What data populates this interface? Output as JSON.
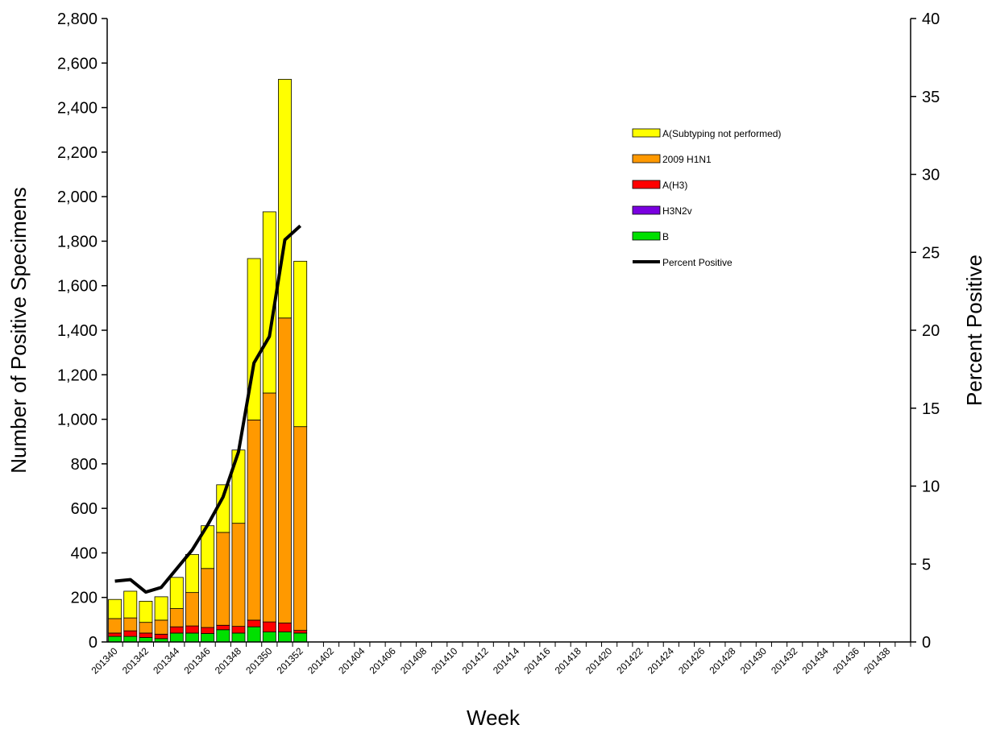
{
  "chart_data": {
    "type": "bar",
    "stacked": true,
    "x_label": "Week",
    "y_label": "Number of Positive Specimens",
    "y2_label": "Percent Positive",
    "categories": [
      "201340",
      null,
      "201342",
      null,
      "201344",
      null,
      "201346",
      null,
      "201348",
      null,
      "201350",
      null,
      "201352",
      null,
      "201402",
      null,
      "201404",
      null,
      "201406",
      null,
      "201408",
      null,
      "201410",
      null,
      "201412",
      null,
      "201414",
      null,
      "201416",
      null,
      "201418",
      null,
      "201420",
      null,
      "201422",
      null,
      "201424",
      null,
      "201426",
      null,
      "201428",
      null,
      "201430",
      null,
      "201432",
      null,
      "201434",
      null,
      "201436",
      null,
      "201438",
      null
    ],
    "ylim": [
      0,
      2800
    ],
    "yticks": [
      0,
      200,
      400,
      600,
      800,
      {
        "value": 1000,
        "label": "1,000"
      },
      {
        "value": 1200,
        "label": "1,200"
      },
      {
        "value": 1400,
        "label": "1,400"
      },
      {
        "value": 1600,
        "label": "1,600"
      },
      {
        "value": 1800,
        "label": "1,800"
      },
      {
        "value": 2000,
        "label": "2,000"
      },
      {
        "value": 2200,
        "label": "2,200"
      },
      {
        "value": 2400,
        "label": "2,400"
      },
      {
        "value": 2600,
        "label": "2,600"
      },
      {
        "value": 2800,
        "label": "2,800"
      }
    ],
    "y2lim": [
      0,
      40
    ],
    "y2ticks": [
      0,
      5,
      10,
      15,
      20,
      25,
      30,
      35,
      40
    ],
    "series": [
      {
        "name": "B",
        "color": "#00e000",
        "values": [
          25,
          25,
          20,
          15,
          40,
          40,
          38,
          55,
          40,
          68,
          45,
          45,
          40,
          null,
          null,
          null,
          null,
          null,
          null,
          null,
          null,
          null,
          null,
          null,
          null,
          null,
          null,
          null,
          null,
          null,
          null,
          null,
          null,
          null,
          null,
          null,
          null,
          null,
          null,
          null,
          null,
          null,
          null,
          null,
          null,
          null,
          null,
          null,
          null,
          null,
          null,
          null
        ]
      },
      {
        "name": "H3N2v",
        "color": "#7a00e0",
        "values": [
          0,
          0,
          0,
          0,
          0,
          0,
          0,
          0,
          0,
          0,
          0,
          0,
          0,
          null,
          null,
          null,
          null,
          null,
          null,
          null,
          null,
          null,
          null,
          null,
          null,
          null,
          null,
          null,
          null,
          null,
          null,
          null,
          null,
          null,
          null,
          null,
          null,
          null,
          null,
          null,
          null,
          null,
          null,
          null,
          null,
          null,
          null,
          null,
          null,
          null,
          null,
          null
        ]
      },
      {
        "name": "A(H3)",
        "color": "#ff0000",
        "values": [
          15,
          25,
          20,
          20,
          28,
          32,
          27,
          20,
          30,
          30,
          45,
          40,
          12,
          null,
          null,
          null,
          null,
          null,
          null,
          null,
          null,
          null,
          null,
          null,
          null,
          null,
          null,
          null,
          null,
          null,
          null,
          null,
          null,
          null,
          null,
          null,
          null,
          null,
          null,
          null,
          null,
          null,
          null,
          null,
          null,
          null,
          null,
          null,
          null,
          null,
          null,
          null
        ]
      },
      {
        "name": "2009 H1N1",
        "color": "#ff9900",
        "values": [
          65,
          58,
          48,
          63,
          82,
          150,
          265,
          417,
          463,
          899,
          1028,
          1370,
          915,
          null,
          null,
          null,
          null,
          null,
          null,
          null,
          null,
          null,
          null,
          null,
          null,
          null,
          null,
          null,
          null,
          null,
          null,
          null,
          null,
          null,
          null,
          null,
          null,
          null,
          null,
          null,
          null,
          null,
          null,
          null,
          null,
          null,
          null,
          null,
          null,
          null,
          null,
          null
        ]
      },
      {
        "name": "A(Subtyping not performed)",
        "color": "#ffff00",
        "values": [
          86,
          120,
          95,
          105,
          140,
          171,
          192,
          214,
          329,
          725,
          814,
          1072,
          743,
          null,
          null,
          null,
          null,
          null,
          null,
          null,
          null,
          null,
          null,
          null,
          null,
          null,
          null,
          null,
          null,
          null,
          null,
          null,
          null,
          null,
          null,
          null,
          null,
          null,
          null,
          null,
          null,
          null,
          null,
          null,
          null,
          null,
          null,
          null,
          null,
          null,
          null,
          null
        ]
      },
      {
        "name": "Percent Positive",
        "type": "line",
        "axis": "y2",
        "color": "#000000",
        "values": [
          3.9,
          4.0,
          3.2,
          3.5,
          4.7,
          5.9,
          7.5,
          9.3,
          12.2,
          17.9,
          19.6,
          25.8,
          26.7,
          null,
          null,
          null,
          null,
          null,
          null,
          null,
          null,
          null,
          null,
          null,
          null,
          null,
          null,
          null,
          null,
          null,
          null,
          null,
          null,
          null,
          null,
          null,
          null,
          null,
          null,
          null,
          null,
          null,
          null,
          null,
          null,
          null,
          null,
          null,
          null,
          null,
          null,
          null
        ]
      }
    ]
  }
}
